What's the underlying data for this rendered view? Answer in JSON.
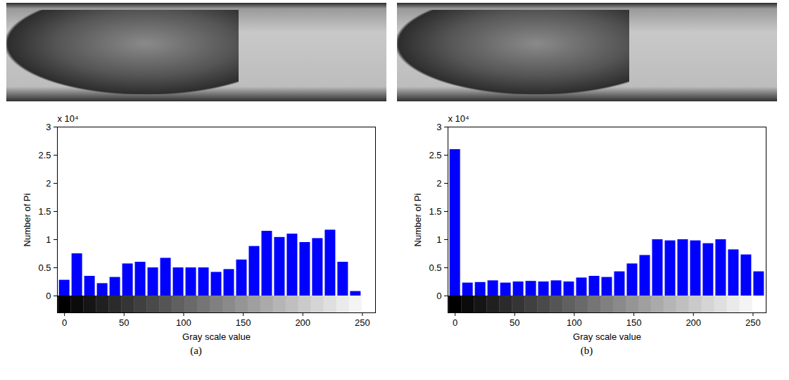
{
  "chart_data": [
    {
      "type": "histogram",
      "caption": "(a)",
      "annotation": "x 10⁴",
      "x_label": "Gray scale value",
      "y_label": "Number of Pi",
      "bins": [
        -5.3125,
        5.3125,
        15.9375,
        26.5625,
        37.1875,
        47.8125,
        58.4375,
        69.0625,
        79.6875,
        90.3125,
        100.9375,
        111.5625,
        122.1875,
        132.8125,
        143.4375,
        154.0625,
        164.6875,
        175.3125,
        185.9375,
        196.5625,
        207.1875,
        217.8125,
        228.4375,
        239.0625,
        249.6875,
        260.3125
      ],
      "values": [
        0.28,
        0.75,
        0.35,
        0.22,
        0.33,
        0.57,
        0.6,
        0.5,
        0.67,
        0.5,
        0.5,
        0.5,
        0.42,
        0.47,
        0.64,
        0.88,
        1.15,
        1.04,
        1.1,
        0.95,
        1.02,
        1.17,
        0.6,
        0.08,
        0
      ],
      "color": "#0000ff",
      "xlim": [
        -6,
        261
      ],
      "xticks": [
        0,
        50,
        100,
        150,
        200,
        250
      ],
      "ylim": [
        -0.3,
        3
      ],
      "yticks": [
        0,
        0.5,
        1,
        1.5,
        2,
        2.5,
        3
      ]
    },
    {
      "type": "histogram",
      "caption": "(b)",
      "annotation": "x 10⁴",
      "x_label": "Gray scale value",
      "y_label": "Number of Pi",
      "bins": [
        -5.3125,
        5.3125,
        15.9375,
        26.5625,
        37.1875,
        47.8125,
        58.4375,
        69.0625,
        79.6875,
        90.3125,
        100.9375,
        111.5625,
        122.1875,
        132.8125,
        143.4375,
        154.0625,
        164.6875,
        175.3125,
        185.9375,
        196.5625,
        207.1875,
        217.8125,
        228.4375,
        239.0625,
        249.6875,
        260.3125
      ],
      "values": [
        2.6,
        0.23,
        0.24,
        0.27,
        0.23,
        0.25,
        0.26,
        0.25,
        0.27,
        0.25,
        0.32,
        0.35,
        0.33,
        0.43,
        0.57,
        0.72,
        1.0,
        0.98,
        1.0,
        0.98,
        0.93,
        1.0,
        0.82,
        0.73,
        0.43
      ],
      "color": "#0000ff",
      "xlim": [
        -6,
        261
      ],
      "xticks": [
        0,
        50,
        100,
        150,
        200,
        250
      ],
      "ylim": [
        -0.3,
        3
      ],
      "yticks": [
        0,
        0.5,
        1,
        1.5,
        2,
        2.5,
        3
      ]
    }
  ]
}
